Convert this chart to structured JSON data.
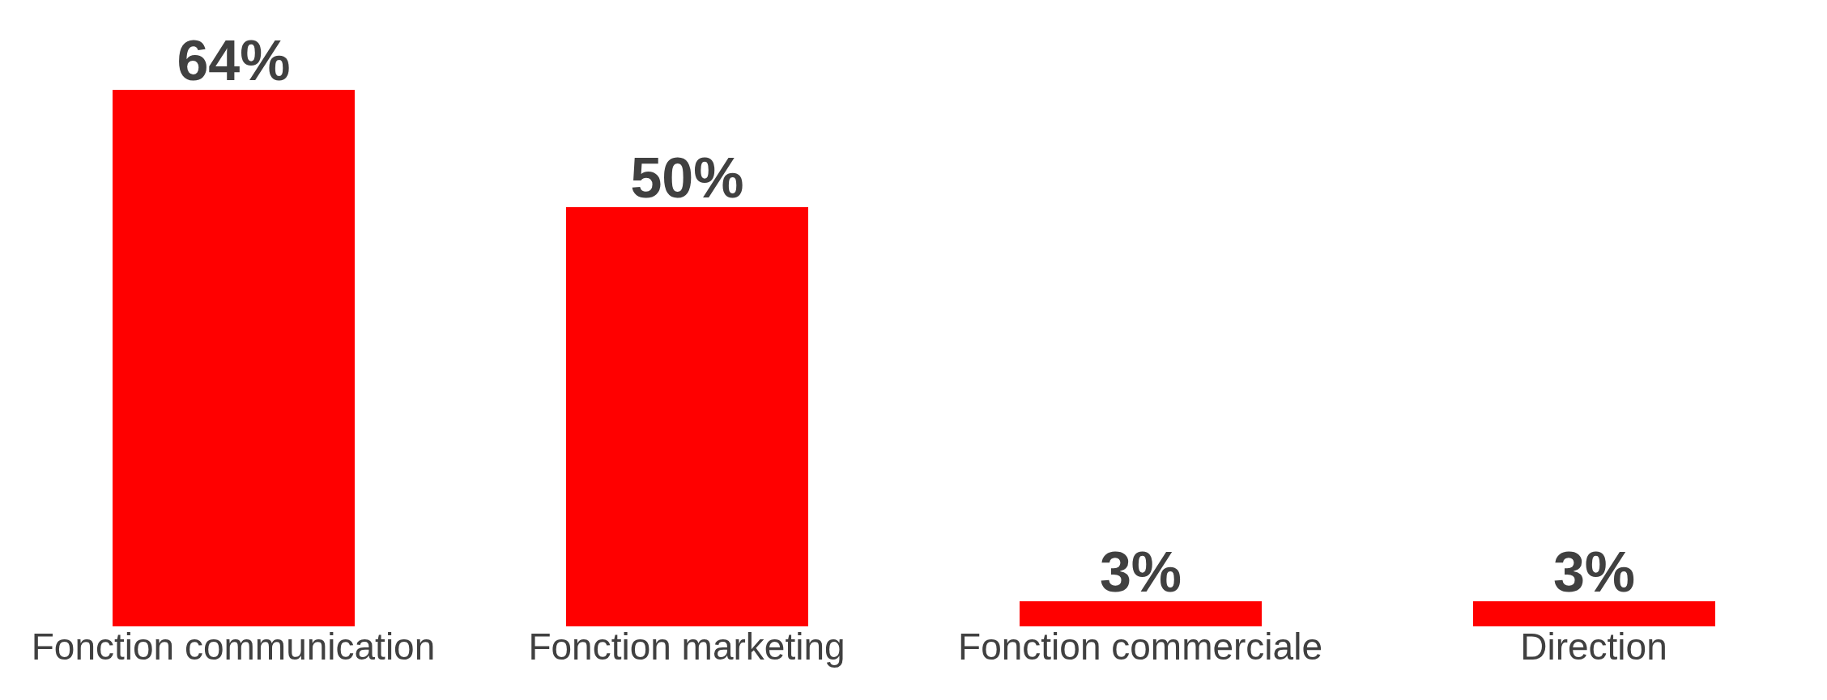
{
  "chart_data": {
    "type": "bar",
    "categories": [
      "Fonction communication",
      "Fonction marketing",
      "Fonction commerciale",
      "Direction"
    ],
    "values": [
      64,
      50,
      3,
      3
    ],
    "value_labels": [
      "64%",
      "50%",
      "3%",
      "3%"
    ],
    "color": "#ff0000"
  }
}
